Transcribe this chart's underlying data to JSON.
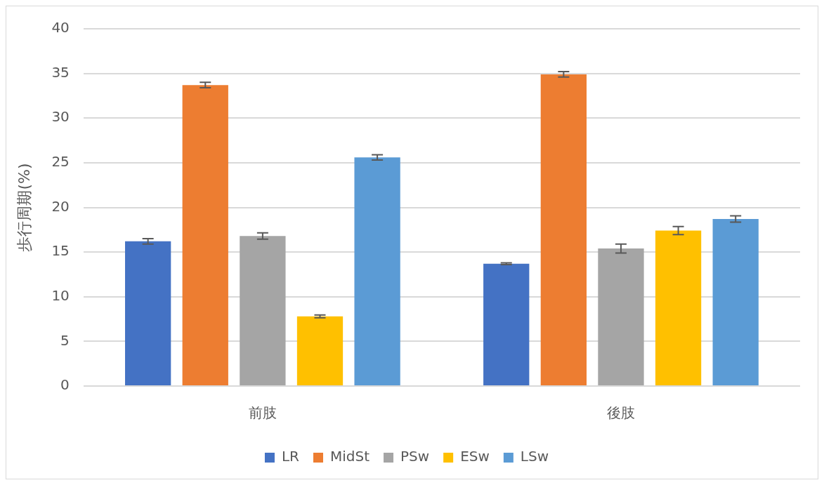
{
  "chart_data": {
    "type": "bar",
    "ylabel": "歩行周期(%)",
    "categories": [
      "前肢",
      "後肢"
    ],
    "series": [
      {
        "name": "LR",
        "color": "#4472c4",
        "values": [
          16.2,
          13.7
        ],
        "errors": [
          0.3,
          0.1
        ]
      },
      {
        "name": "MidSt",
        "color": "#ed7d31",
        "values": [
          33.7,
          34.9
        ],
        "errors": [
          0.3,
          0.3
        ]
      },
      {
        "name": "PSw",
        "color": "#a5a5a5",
        "values": [
          16.8,
          15.4
        ],
        "errors": [
          0.35,
          0.5
        ]
      },
      {
        "name": "ESw",
        "color": "#ffc000",
        "values": [
          7.8,
          17.4
        ],
        "errors": [
          0.15,
          0.45
        ]
      },
      {
        "name": "LSw",
        "color": "#5b9bd5",
        "values": [
          25.6,
          18.7
        ],
        "errors": [
          0.3,
          0.35
        ]
      }
    ],
    "ylim": [
      0,
      40
    ],
    "yticks": [
      0,
      5,
      10,
      15,
      20,
      25,
      30,
      35,
      40
    ],
    "grid": "y",
    "legend": "bottom"
  }
}
